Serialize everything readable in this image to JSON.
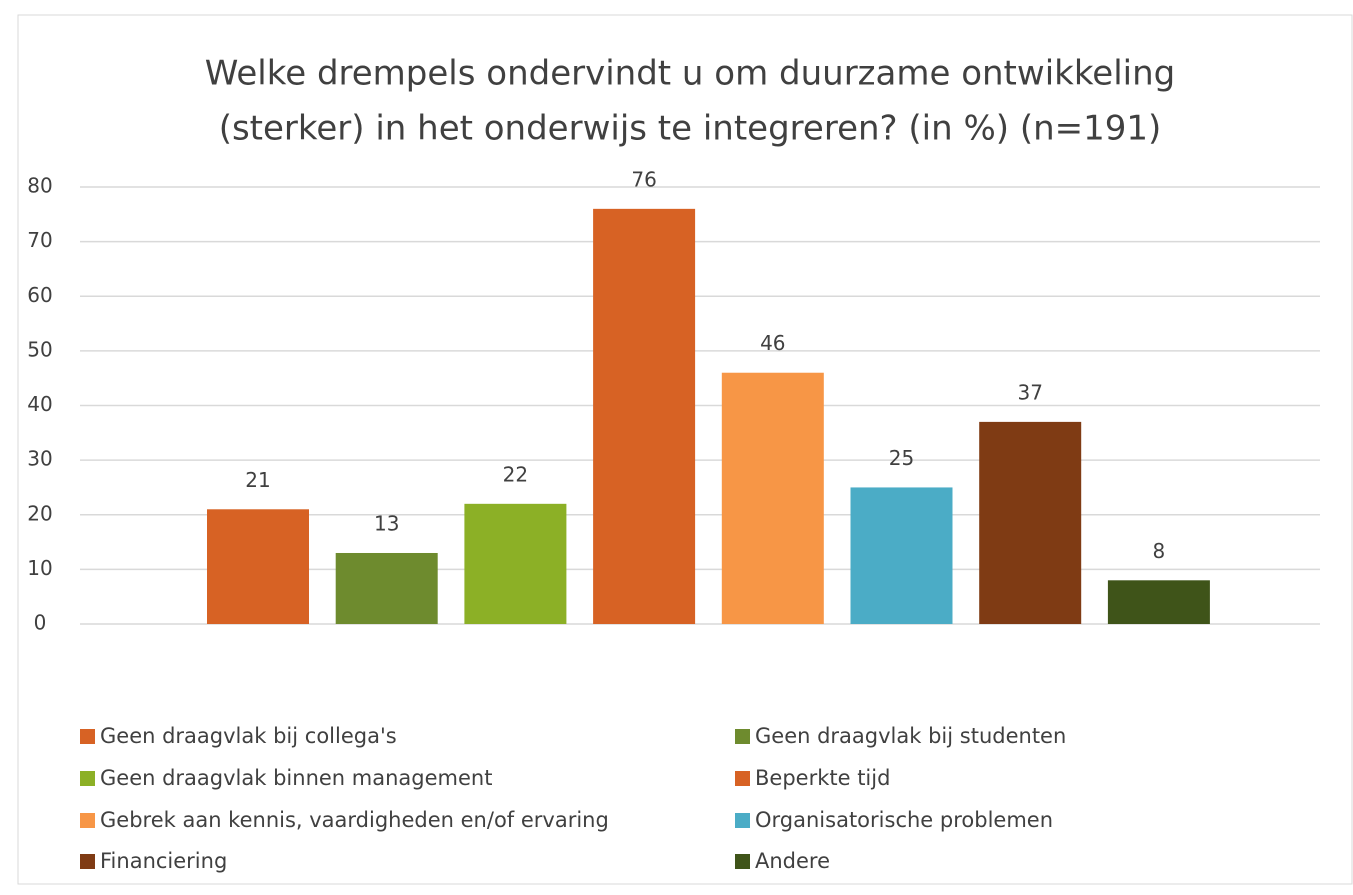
{
  "chart_data": {
    "type": "bar",
    "title": [
      "Welke drempels ondervindt u om duurzame ontwikkeling",
      "(sterker) in het onderwijs te integreren? (in %) (n=191)"
    ],
    "series": [
      {
        "name": "Geen draagvlak bij collega's",
        "color": "#d76224",
        "values": [
          21
        ]
      },
      {
        "name": "Geen draagvlak bij studenten",
        "color": "#6e8b2e",
        "values": [
          13
        ]
      },
      {
        "name": "Geen draagvlak binnen management",
        "color": "#8cb026",
        "values": [
          22
        ]
      },
      {
        "name": "Beperkte tijd",
        "color": "#d76224",
        "values": [
          76
        ]
      },
      {
        "name": "Gebrek aan kennis, vaardigheden en/of ervaring",
        "color": "#f79646",
        "values": [
          46
        ]
      },
      {
        "name": "Organisatorische problemen",
        "color": "#4bacc6",
        "values": [
          25
        ]
      },
      {
        "name": "Financiering",
        "color": "#7f3b14",
        "values": [
          37
        ]
      },
      {
        "name": "Andere",
        "color": "#3f5419",
        "values": [
          8
        ]
      }
    ],
    "ylim": [
      0,
      80
    ],
    "yticks": [
      0,
      10,
      20,
      30,
      40,
      50,
      60,
      70,
      80
    ],
    "grid": true,
    "legend": "bottom"
  }
}
